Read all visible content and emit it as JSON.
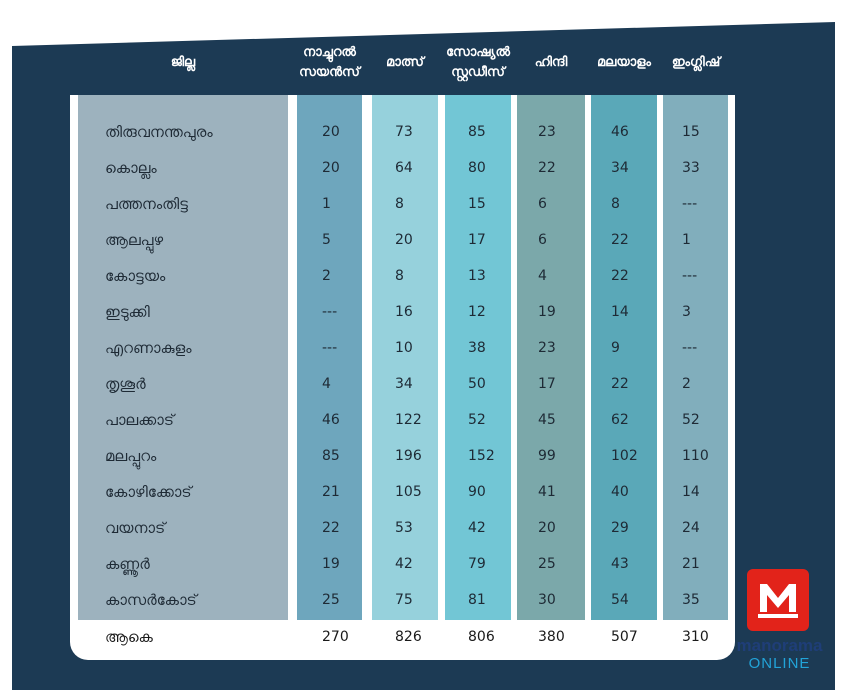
{
  "header": {
    "district": "ജില്ല",
    "natural_science": [
      "നാച്ചുറൽ",
      "സയൻസ്"
    ],
    "maths": "മാത്സ്",
    "social_studies": [
      "സോഷ്യൽ",
      "സ്റ്റഡീസ്"
    ],
    "hindi": "ഹിന്ദി",
    "malayalam": "മലയാളം",
    "english": "ഇംഗ്ലിഷ്"
  },
  "rows": [
    {
      "district": "തിരുവനന്തപുരം",
      "values": [
        "20",
        "73",
        "85",
        "23",
        "46",
        "15"
      ]
    },
    {
      "district": "കൊല്ലം",
      "values": [
        "20",
        "64",
        "80",
        "22",
        "34",
        "33"
      ]
    },
    {
      "district": "പത്തനംതിട്ട",
      "values": [
        "1",
        "8",
        "15",
        "6",
        "8",
        "---"
      ]
    },
    {
      "district": "ആലപ്പുഴ",
      "values": [
        "5",
        "20",
        "17",
        "6",
        "22",
        "1"
      ]
    },
    {
      "district": "കോട്ടയം",
      "values": [
        "2",
        "8",
        "13",
        "4",
        "22",
        "---"
      ]
    },
    {
      "district": "ഇടുക്കി",
      "values": [
        "---",
        "16",
        "12",
        "19",
        "14",
        "3"
      ]
    },
    {
      "district": "എറണാകുളം",
      "values": [
        "---",
        "10",
        "38",
        "23",
        "9",
        "---"
      ]
    },
    {
      "district": "തൃശൂർ",
      "values": [
        "4",
        "34",
        "50",
        "17",
        "22",
        "2"
      ]
    },
    {
      "district": "പാലക്കാട്",
      "values": [
        "46",
        "122",
        "52",
        "45",
        "62",
        "52"
      ]
    },
    {
      "district": "മലപ്പുറം",
      "values": [
        "85",
        "196",
        "152",
        "99",
        "102",
        "110"
      ]
    },
    {
      "district": "കോഴിക്കോട്",
      "values": [
        "21",
        "105",
        "90",
        "41",
        "40",
        "14"
      ]
    },
    {
      "district": "വയനാട്",
      "values": [
        "22",
        "53",
        "42",
        "20",
        "29",
        "24"
      ]
    },
    {
      "district": "കണ്ണൂർ",
      "values": [
        "19",
        "42",
        "79",
        "25",
        "43",
        "21"
      ]
    },
    {
      "district": "കാസർകോട്",
      "values": [
        "25",
        "75",
        "81",
        "30",
        "54",
        "35"
      ]
    }
  ],
  "total": {
    "label": "ആകെ",
    "values": [
      "270",
      "826",
      "806",
      "380",
      "507",
      "310"
    ]
  },
  "brand": {
    "name": "manorama",
    "sub": "ONLINE",
    "logo_letter": "M",
    "logo_color": "#e2231a"
  }
}
